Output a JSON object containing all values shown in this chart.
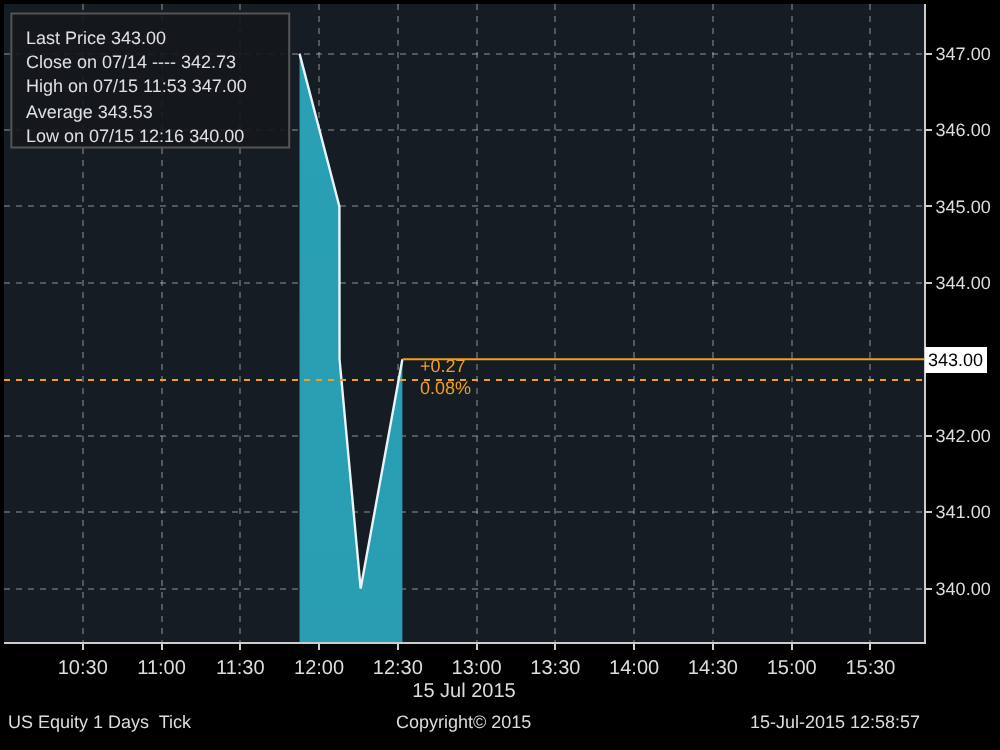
{
  "chart_data": {
    "type": "area",
    "x": [
      11.876,
      12.129,
      12.13,
      12.264,
      12.529
    ],
    "series": [
      {
        "color": "#e8f4f8",
        "values": [
          347.0,
          345.0,
          343.0,
          340.0,
          343.0
        ]
      }
    ],
    "xlim": [
      10.0,
      15.84
    ],
    "xticks": [
      {
        "value": 10.5,
        "label": "10:30"
      },
      {
        "value": 11.0,
        "label": "11:00"
      },
      {
        "value": 11.5,
        "label": "11:30"
      },
      {
        "value": 12.0,
        "label": "12:00"
      },
      {
        "value": 12.5,
        "label": "12:30"
      },
      {
        "value": 13.0,
        "label": "13:00"
      },
      {
        "value": 13.5,
        "label": "13:30"
      },
      {
        "value": 14.0,
        "label": "14:00"
      },
      {
        "value": 14.5,
        "label": "14:30"
      },
      {
        "value": 15.0,
        "label": "15:00"
      },
      {
        "value": 15.5,
        "label": "15:30"
      }
    ],
    "ylim": [
      339.3,
      347.65
    ],
    "yticks": [
      {
        "value": 340,
        "label": "340.00"
      },
      {
        "value": 341,
        "label": "341.00"
      },
      {
        "value": 342,
        "label": "342.00"
      },
      {
        "value": 344,
        "label": "344.00"
      },
      {
        "value": 345,
        "label": "345.00"
      },
      {
        "value": 346,
        "label": "346.00"
      },
      {
        "value": 347,
        "label": "347.00"
      }
    ],
    "xlabel": "15 Jul 2015",
    "grid": true,
    "ref_lines": [
      {
        "axis": "y",
        "value": 343.0,
        "label": "343.00",
        "color": "#f0a020",
        "line_style": "solid"
      },
      {
        "axis": "y",
        "value": 342.73,
        "color": "#f0a020",
        "line_style": "dotted"
      }
    ],
    "annotations": [
      {
        "text": "+0.27",
        "x": 12.62,
        "y": 342.9
      },
      {
        "text": "0.08%",
        "x": 12.62,
        "y": 342.62
      },
      "Last Price 343.00",
      "Close on 07/14 ---- 342.73",
      "High on 07/15 11:53 347.00",
      "Average 343.53",
      "Low on 07/15 12:16 340.00",
      "US Equity 1 Days  Tick",
      "Copyright© 2015",
      "15-Jul-2015 12:58:57"
    ]
  }
}
